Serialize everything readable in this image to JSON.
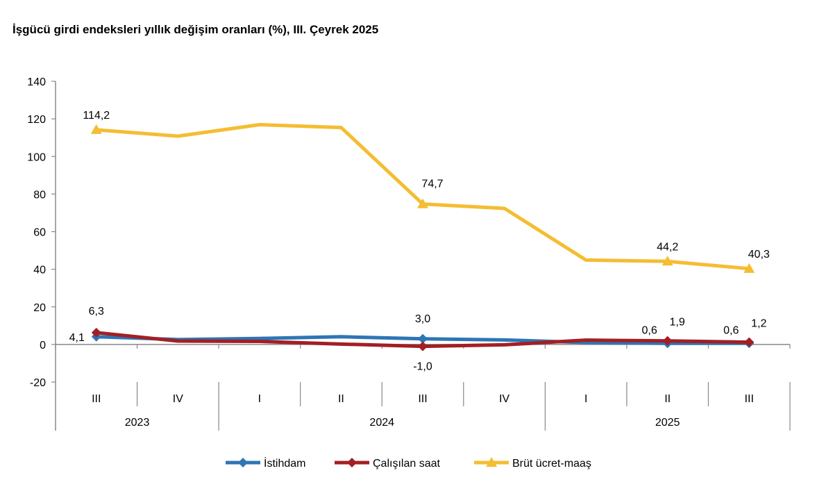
{
  "chart_data": {
    "type": "line",
    "title": "İşgücü girdi endeksleri yıllık değişim oranları (%), III. Çeyrek 2025",
    "categories": [
      "III",
      "IV",
      "I",
      "II",
      "III",
      "IV",
      "I",
      "II",
      "III"
    ],
    "year_groups": [
      {
        "label": "2023",
        "span": 2
      },
      {
        "label": "2024",
        "span": 4
      },
      {
        "label": "2025",
        "span": 3
      }
    ],
    "ylim": [
      -20,
      140
    ],
    "yticks": [
      -20,
      0,
      20,
      40,
      60,
      80,
      100,
      120,
      140
    ],
    "grid": false,
    "legend_position": "bottom",
    "series": [
      {
        "name": "İstihdam",
        "color": "#2e75b6",
        "marker": "diamond",
        "values": [
          4.1,
          2.6,
          3.2,
          4.1,
          3.0,
          2.4,
          1.0,
          0.6,
          0.6
        ],
        "labels": [
          "4,1",
          null,
          null,
          null,
          "3,0",
          null,
          null,
          "0,6",
          "0,6"
        ]
      },
      {
        "name": "Çalışılan saat",
        "color": "#a31f23",
        "marker": "diamond",
        "values": [
          6.3,
          1.8,
          1.6,
          0.2,
          -1.0,
          -0.2,
          2.3,
          1.9,
          1.2
        ],
        "labels": [
          "6,3",
          null,
          null,
          null,
          "-1,0",
          null,
          null,
          "1,9",
          "1,2"
        ]
      },
      {
        "name": "Brüt ücret-maaş",
        "color": "#f4bd32",
        "marker": "triangle",
        "values": [
          114.2,
          110.8,
          116.9,
          115.4,
          74.7,
          72.4,
          44.9,
          44.2,
          40.3
        ],
        "labels": [
          "114,2",
          null,
          null,
          null,
          "74,7",
          null,
          null,
          "44,2",
          "40,3"
        ]
      }
    ]
  }
}
